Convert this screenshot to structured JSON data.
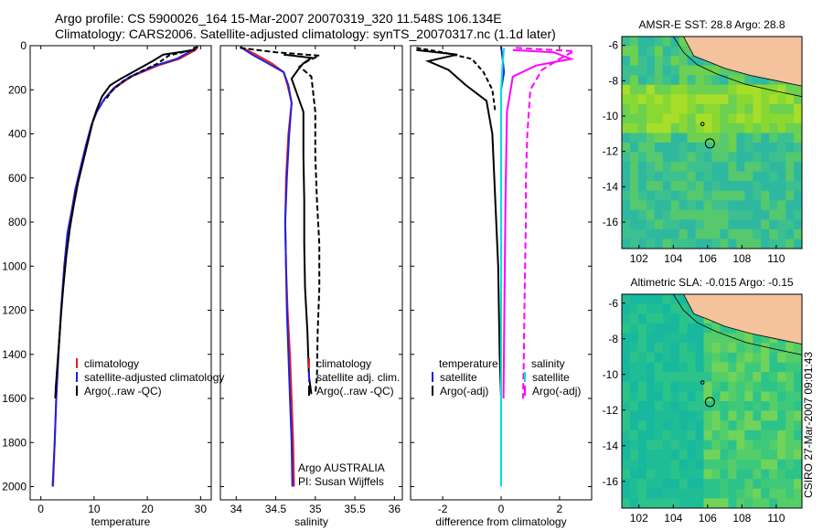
{
  "header": {
    "line1": "Argo profile: CS 5900026_164 15-Mar-2007 20070319_320 11.548S 106.134E",
    "line2": "Climatology: CARS2006. Satellite-adjusted climatology: synTS_20070317.nc (1.1d later)"
  },
  "side_caption": "CSIRO 27-Mar-2007 09:01:43",
  "colors": {
    "climatology": "#e02020",
    "satellite": "#2020e0",
    "argo": "#000000",
    "salinity_diff": "#ff00ff",
    "salinity_sat_diff": "#00e0e0",
    "land": "#f4c29c"
  },
  "chart_data": [
    {
      "type": "line",
      "xlabel": "temperature",
      "xlim": [
        -2,
        32
      ],
      "ylim": [
        2060,
        0
      ],
      "yticks": [
        0,
        200,
        400,
        600,
        800,
        1000,
        1200,
        1400,
        1600,
        1800,
        2000
      ],
      "xticks": [
        0,
        10,
        20,
        30
      ],
      "legend": [
        "climatology",
        "satellite-adjusted climatology",
        "Argo(..raw -QC)"
      ],
      "series": [
        {
          "name": "climatology",
          "color": "#e02020",
          "dash": "",
          "points": [
            [
              29.5,
              5
            ],
            [
              29,
              20
            ],
            [
              26,
              60
            ],
            [
              22,
              90
            ],
            [
              17,
              140
            ],
            [
              14,
              190
            ],
            [
              12,
              240
            ],
            [
              10.5,
              300
            ],
            [
              9.5,
              360
            ],
            [
              8.5,
              450
            ],
            [
              7.5,
              550
            ],
            [
              6.5,
              650
            ],
            [
              5.8,
              750
            ],
            [
              5,
              850
            ],
            [
              4.4,
              1000
            ],
            [
              3.8,
              1200
            ],
            [
              3.3,
              1400
            ],
            [
              2.9,
              1600
            ],
            [
              2.6,
              1800
            ],
            [
              2.3,
              2000
            ]
          ]
        },
        {
          "name": "satellite-adjusted climatology",
          "color": "#2020e0",
          "dash": "",
          "points": [
            [
              29.2,
              5
            ],
            [
              28.5,
              20
            ],
            [
              25.5,
              60
            ],
            [
              21.5,
              90
            ],
            [
              16.8,
              140
            ],
            [
              13.8,
              190
            ],
            [
              12,
              240
            ],
            [
              10.5,
              300
            ],
            [
              9.5,
              360
            ],
            [
              8.5,
              450
            ],
            [
              7.5,
              550
            ],
            [
              6.5,
              650
            ],
            [
              5.8,
              750
            ],
            [
              5,
              850
            ],
            [
              4.4,
              1000
            ],
            [
              3.8,
              1200
            ],
            [
              3.3,
              1400
            ],
            [
              2.9,
              1600
            ],
            [
              2.6,
              1800
            ],
            [
              2.2,
              2000
            ]
          ]
        },
        {
          "name": "Argo(..raw -QC)",
          "color": "#000000",
          "dash": "",
          "points": [
            [
              28.8,
              5
            ],
            [
              28.8,
              20
            ],
            [
              23,
              40
            ],
            [
              21,
              70
            ],
            [
              18,
              110
            ],
            [
              15,
              150
            ],
            [
              13,
              180
            ],
            [
              11.5,
              230
            ],
            [
              10.5,
              290
            ],
            [
              9.8,
              340
            ],
            [
              9,
              420
            ],
            [
              8,
              520
            ],
            [
              7,
              620
            ],
            [
              6.2,
              720
            ],
            [
              5.5,
              820
            ],
            [
              4.8,
              950
            ],
            [
              4.2,
              1100
            ],
            [
              3.7,
              1250
            ],
            [
              3.2,
              1420
            ],
            [
              2.8,
              1550
            ],
            [
              2.7,
              1600
            ]
          ]
        },
        {
          "name": "Argo(..raw -QC)",
          "color": "#000000",
          "dash": "5,3",
          "points": [
            [
              29.5,
              5
            ],
            [
              28.2,
              20
            ],
            [
              24,
              45
            ],
            [
              22,
              80
            ],
            [
              18.5,
              120
            ],
            [
              15.5,
              160
            ],
            [
              13.5,
              200
            ],
            [
              12,
              250
            ]
          ]
        }
      ]
    },
    {
      "type": "line",
      "xlabel": "salinity",
      "xlim": [
        33.8,
        36.1
      ],
      "ylim": [
        2060,
        0
      ],
      "xticks": [
        34,
        34.5,
        35,
        35.5,
        36
      ],
      "legend": [
        "climatology",
        "satellite adj. clim.",
        "Argo(..raw -QC)"
      ],
      "annotations": [
        "Argo AUSTRALIA",
        "PI: Susan Wijffels"
      ],
      "series": [
        {
          "name": "climatology",
          "color": "#e02020",
          "dash": "",
          "points": [
            [
              34.05,
              5
            ],
            [
              34.25,
              40
            ],
            [
              34.45,
              80
            ],
            [
              34.6,
              120
            ],
            [
              34.65,
              180
            ],
            [
              34.7,
              260
            ],
            [
              34.66,
              400
            ],
            [
              34.63,
              600
            ],
            [
              34.62,
              800
            ],
            [
              34.63,
              1000
            ],
            [
              34.65,
              1200
            ],
            [
              34.68,
              1400
            ],
            [
              34.7,
              1600
            ],
            [
              34.72,
              1800
            ],
            [
              34.73,
              2000
            ]
          ]
        },
        {
          "name": "satellite adj. clim.",
          "color": "#2020e0",
          "dash": "",
          "points": [
            [
              34.05,
              5
            ],
            [
              34.2,
              40
            ],
            [
              34.4,
              80
            ],
            [
              34.6,
              120
            ],
            [
              34.66,
              180
            ],
            [
              34.7,
              260
            ],
            [
              34.67,
              400
            ],
            [
              34.64,
              600
            ],
            [
              34.62,
              800
            ],
            [
              34.63,
              1000
            ],
            [
              34.64,
              1200
            ],
            [
              34.66,
              1400
            ],
            [
              34.68,
              1600
            ],
            [
              34.7,
              1800
            ],
            [
              34.71,
              2000
            ]
          ]
        },
        {
          "name": "Argo(..raw -QC)",
          "color": "#000000",
          "dash": "",
          "points": [
            [
              34.6,
              40
            ],
            [
              34.95,
              55
            ],
            [
              34.85,
              80
            ],
            [
              34.8,
              100
            ],
            [
              34.7,
              150
            ],
            [
              34.75,
              200
            ],
            [
              34.85,
              300
            ],
            [
              34.85,
              500
            ],
            [
              34.86,
              700
            ],
            [
              34.86,
              900
            ],
            [
              34.87,
              1100
            ],
            [
              34.9,
              1300
            ],
            [
              34.92,
              1500
            ],
            [
              34.95,
              1580
            ]
          ]
        },
        {
          "name": "Argo(..raw -QC)",
          "color": "#000000",
          "dash": "6,3",
          "points": [
            [
              34.05,
              10
            ],
            [
              34.5,
              30
            ],
            [
              35.05,
              45
            ],
            [
              34.9,
              70
            ],
            [
              34.8,
              95
            ],
            [
              34.95,
              140
            ],
            [
              35.0,
              300
            ],
            [
              35.0,
              500
            ],
            [
              35.02,
              700
            ],
            [
              35.05,
              900
            ],
            [
              35.05,
              1100
            ],
            [
              35.03,
              1300
            ],
            [
              35.02,
              1500
            ],
            [
              35.0,
              1580
            ]
          ]
        }
      ]
    },
    {
      "type": "line",
      "xlabel": "difference from climatology",
      "xlim": [
        -3.1,
        3.1
      ],
      "ylim": [
        2060,
        0
      ],
      "xticks": [
        -2,
        0,
        2
      ],
      "legend_left_title": "temperature",
      "legend_right_title": "salinity",
      "legend_left": [
        "satellite",
        "Argo(-adj)"
      ],
      "legend_right": [
        "satellite",
        "Argo(-adj)"
      ],
      "series": [
        {
          "name": "satellite",
          "color": "#2020e0",
          "dash": "",
          "points": [
            [
              0,
              5
            ],
            [
              0.05,
              60
            ],
            [
              0.1,
              120
            ],
            [
              0,
              200
            ],
            [
              0,
              2000
            ]
          ]
        },
        {
          "name": "Argo(-adj)",
          "color": "#000000",
          "dash": "",
          "points": [
            [
              -2.9,
              20
            ],
            [
              -1.5,
              40
            ],
            [
              -2.5,
              70
            ],
            [
              -1.8,
              110
            ],
            [
              -1.2,
              180
            ],
            [
              -0.5,
              250
            ],
            [
              -0.3,
              400
            ],
            [
              -0.2,
              700
            ],
            [
              -0.1,
              1000
            ],
            [
              -0.05,
              1400
            ],
            [
              0,
              1600
            ]
          ]
        },
        {
          "name": "Argo(-adj)",
          "color": "#000000",
          "dash": "5,3",
          "points": [
            [
              -2.9,
              10
            ],
            [
              -2.0,
              30
            ],
            [
              -1.0,
              60
            ],
            [
              -0.6,
              120
            ],
            [
              -0.3,
              200
            ],
            [
              -0.2,
              300
            ]
          ]
        },
        {
          "name": "satellite",
          "color": "#00e0e0",
          "dash": "",
          "points": [
            [
              0.1,
              10
            ],
            [
              0.05,
              80
            ],
            [
              0,
              200
            ],
            [
              0,
              2000
            ]
          ]
        },
        {
          "name": "Argo(-adj)",
          "color": "#ff00ff",
          "dash": "",
          "points": [
            [
              0.4,
              20
            ],
            [
              1.8,
              30
            ],
            [
              2.4,
              60
            ],
            [
              1.2,
              90
            ],
            [
              0.4,
              140
            ],
            [
              0.2,
              300
            ],
            [
              0.15,
              700
            ],
            [
              0.12,
              1100
            ],
            [
              0.08,
              1600
            ]
          ]
        },
        {
          "name": "Argo(-adj)",
          "color": "#ff00ff",
          "dash": "7,4",
          "points": [
            [
              0.5,
              10
            ],
            [
              2.5,
              25
            ],
            [
              2.0,
              60
            ],
            [
              1.4,
              110
            ],
            [
              1.0,
              200
            ],
            [
              0.9,
              400
            ],
            [
              0.85,
              600
            ],
            [
              0.85,
              800
            ],
            [
              0.82,
              1000
            ],
            [
              0.8,
              1200
            ],
            [
              0.78,
              1400
            ],
            [
              0.75,
              1600
            ]
          ]
        }
      ]
    },
    {
      "type": "heatmap",
      "title": "AMSR-E SST: 28.8 Argo: 28.8",
      "xlim": [
        101,
        111.5
      ],
      "ylim": [
        -17.5,
        -5.5
      ],
      "xticks": [
        102,
        104,
        106,
        108,
        110
      ],
      "yticks": [
        -6,
        -8,
        -10,
        -12,
        -14,
        -16
      ],
      "marker": {
        "x": 106.134,
        "y": -11.548
      }
    },
    {
      "type": "heatmap",
      "title": "Altimetric SLA: -0.015 Argo: -0.15",
      "xlim": [
        101,
        111.5
      ],
      "ylim": [
        -17.5,
        -5.5
      ],
      "xticks": [
        102,
        104,
        106,
        108,
        110
      ],
      "yticks": [
        -6,
        -8,
        -10,
        -12,
        -14,
        -16
      ],
      "marker": {
        "x": 106.134,
        "y": -11.548
      }
    }
  ]
}
